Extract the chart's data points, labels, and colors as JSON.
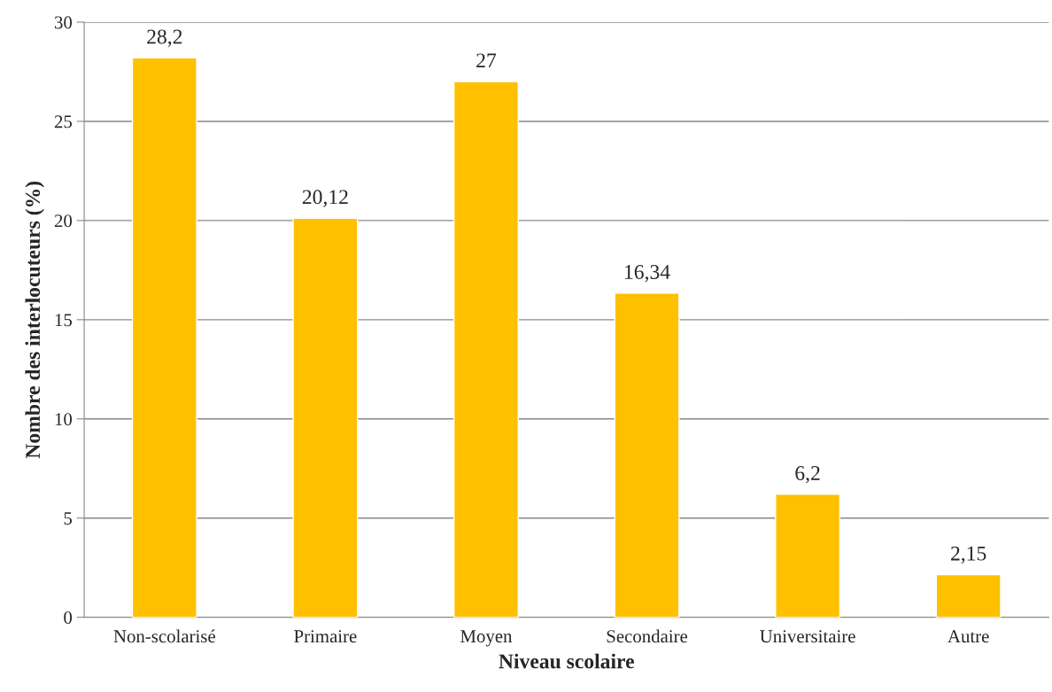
{
  "chart_data": {
    "type": "bar",
    "xlabel": "Niveau scolaire",
    "ylabel": "Nombre des interlocuteurs (%)",
    "categories": [
      "Non-scolarisé",
      "Primaire",
      "Moyen",
      "Secondaire",
      "Universitaire",
      "Autre"
    ],
    "values": [
      28.2,
      20.12,
      27,
      16.34,
      6.2,
      2.15
    ],
    "value_labels": [
      "28,2",
      "20,12",
      "27",
      "16,34",
      "6,2",
      "2,15"
    ],
    "color": "#ffc000",
    "ylim": [
      0,
      30
    ],
    "yticks": [
      0,
      5,
      10,
      15,
      20,
      25,
      30
    ],
    "grid": "y",
    "legend": false
  }
}
